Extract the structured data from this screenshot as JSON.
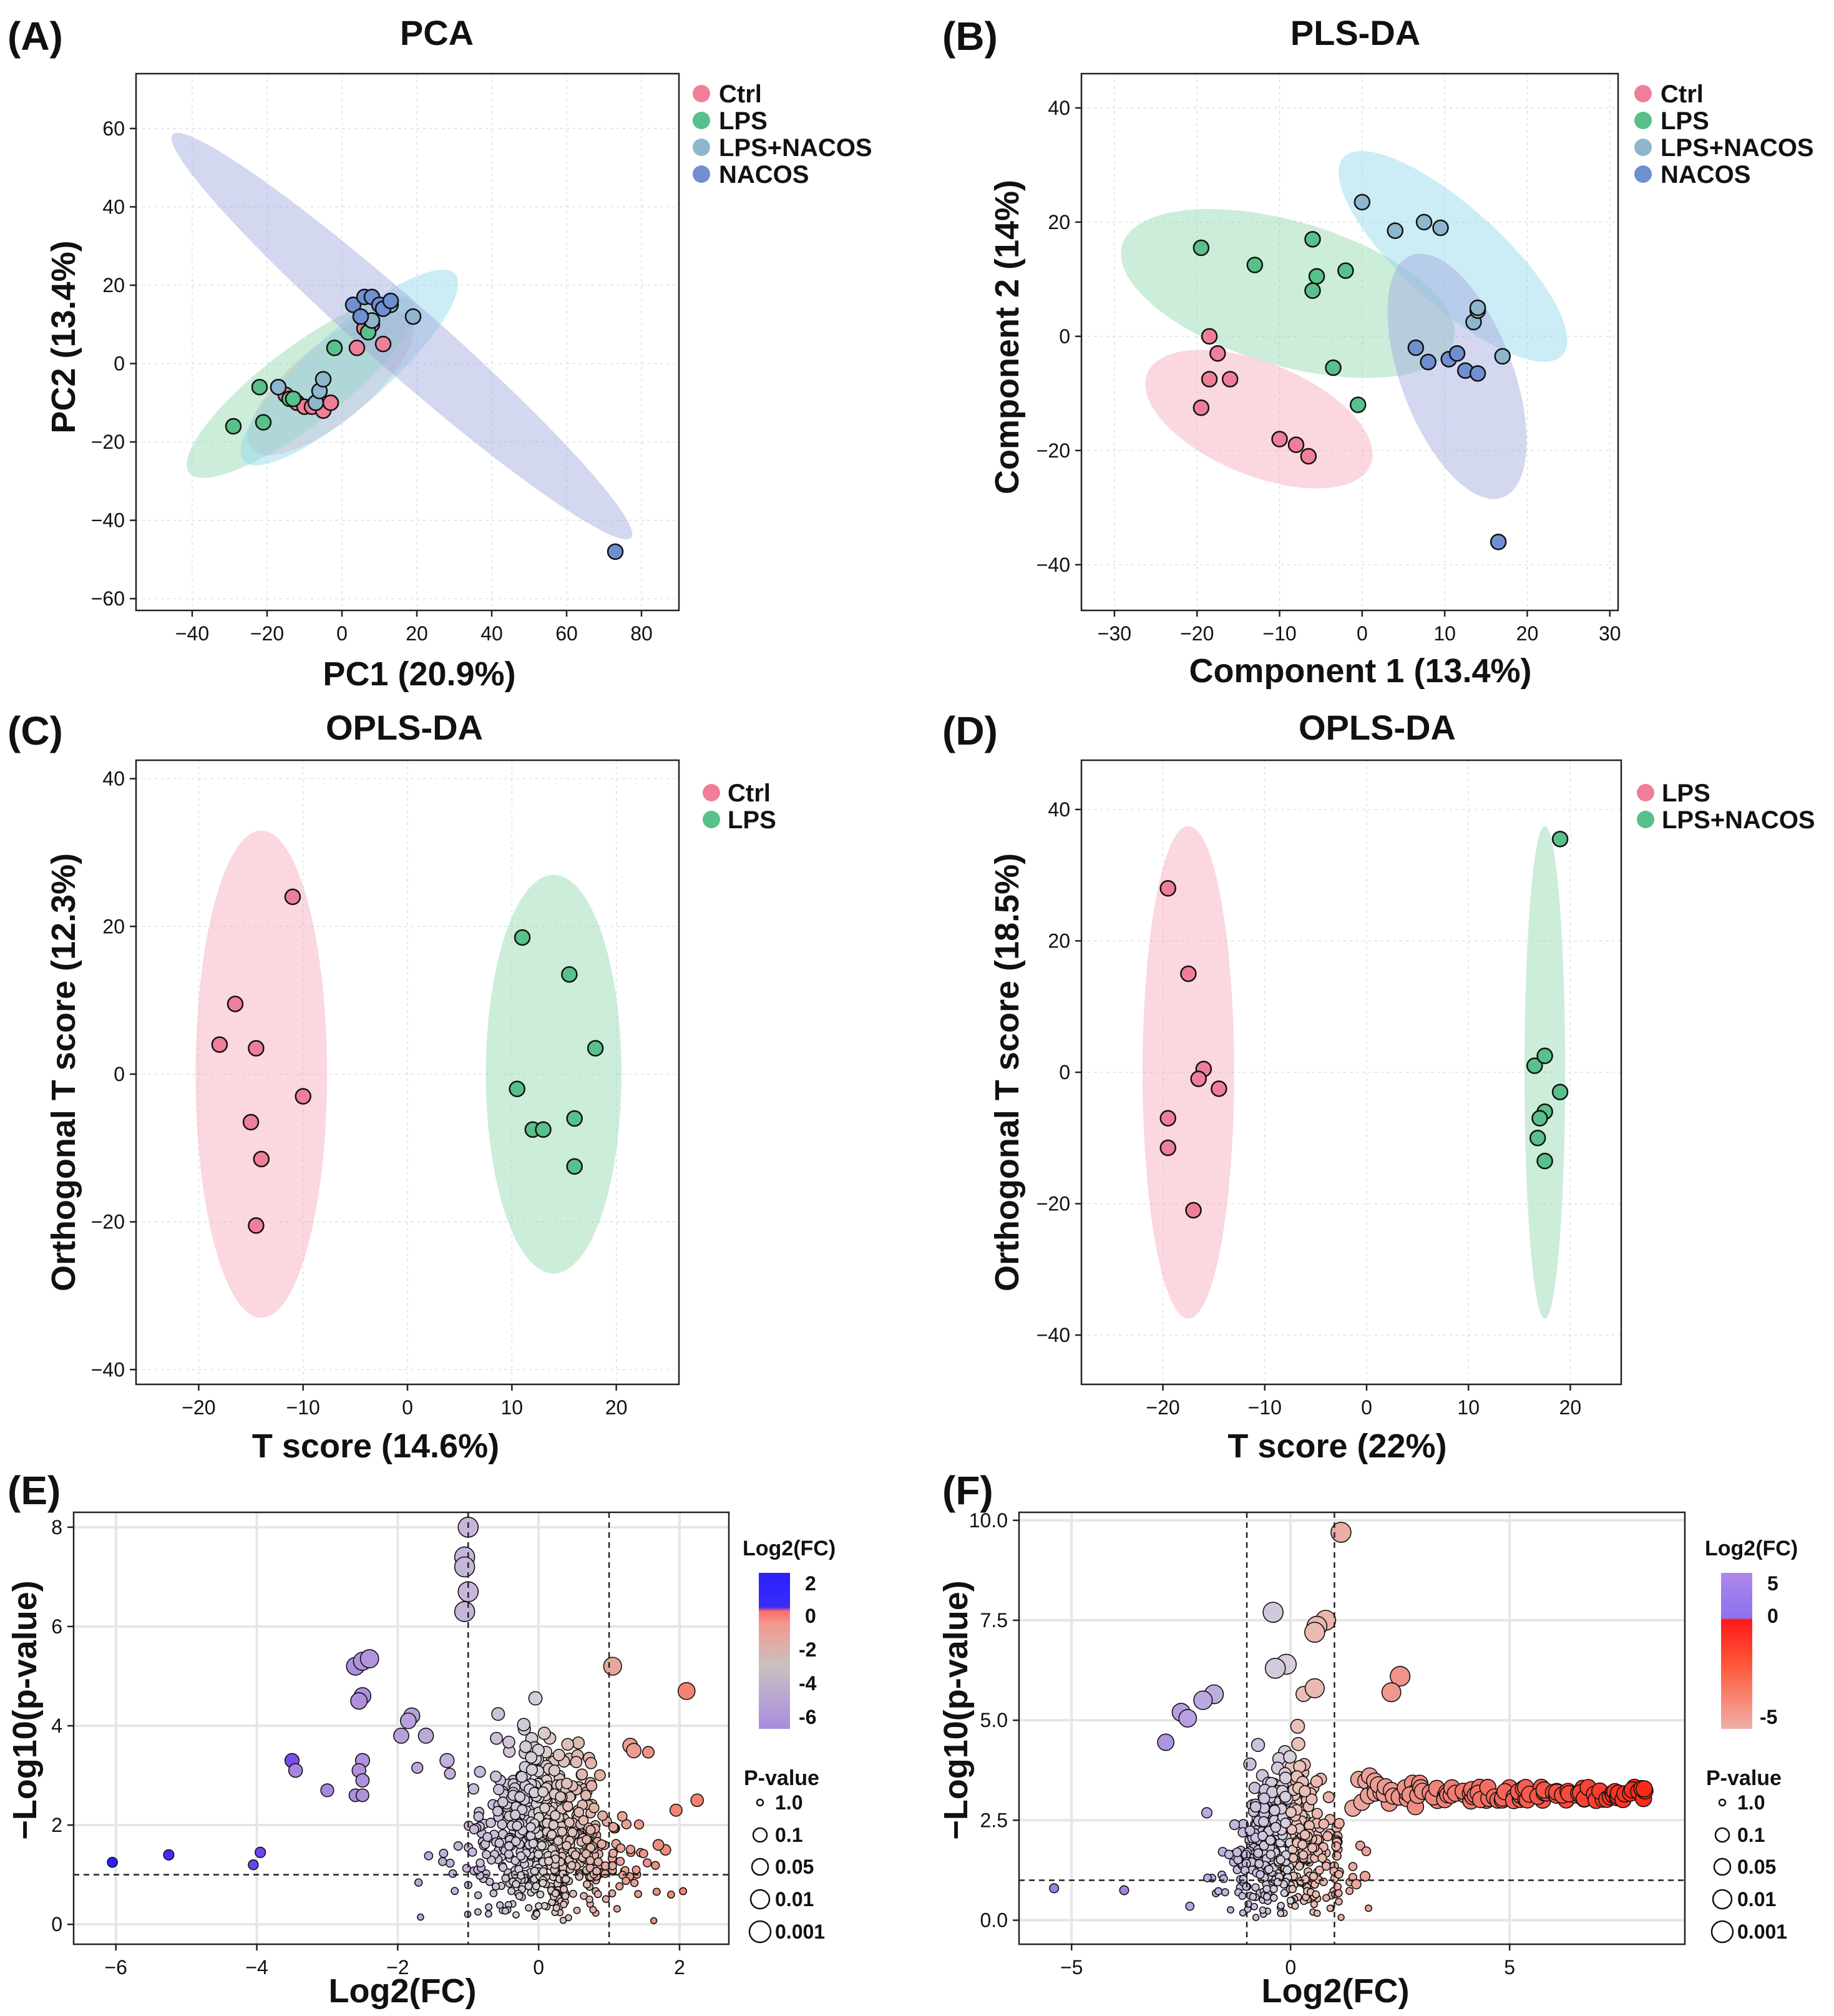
{
  "chart_data": [
    {
      "id": "A",
      "panel_label": "(A)",
      "type": "scatter",
      "title": "PCA",
      "xlabel": "PC1 (20.9%)",
      "ylabel": "PC2 (13.4%)",
      "xlim": [
        -55,
        90
      ],
      "ylim": [
        -63,
        74
      ],
      "xticks": [
        -40,
        -20,
        0,
        20,
        40,
        60,
        80
      ],
      "yticks": [
        -60,
        -40,
        -20,
        0,
        20,
        40,
        60
      ],
      "legend": [
        "Ctrl",
        "LPS",
        "LPS+NACOS",
        "NACOS"
      ],
      "ellipses": [
        {
          "group": "Ctrl",
          "cx": -3,
          "cy": -5,
          "rx": 27,
          "ry": 10,
          "angle": 38
        },
        {
          "group": "LPS",
          "cx": -11,
          "cy": -6,
          "rx": 37,
          "ry": 10,
          "angle": 36
        },
        {
          "group": "LPS+NACOS",
          "cx": 2,
          "cy": -1,
          "rx": 37,
          "ry": 10,
          "angle": 40
        },
        {
          "group": "NACOS",
          "cx": 16,
          "cy": 7,
          "rx": 80,
          "ry": 9,
          "angle": -40
        }
      ],
      "series": [
        {
          "name": "Ctrl",
          "points": [
            [
              -17,
              -6
            ],
            [
              -15,
              -8
            ],
            [
              -12,
              -10
            ],
            [
              -10,
              -11
            ],
            [
              -8,
              -11
            ],
            [
              -5,
              -12
            ],
            [
              -3,
              -10
            ],
            [
              4,
              4
            ],
            [
              6,
              9
            ],
            [
              8,
              10
            ],
            [
              11,
              5
            ]
          ]
        },
        {
          "name": "LPS",
          "points": [
            [
              -29,
              -16
            ],
            [
              -22,
              -6
            ],
            [
              -21,
              -15
            ],
            [
              -14,
              -9
            ],
            [
              -13,
              -9
            ],
            [
              -2,
              4
            ],
            [
              7,
              8
            ],
            [
              8,
              11
            ]
          ]
        },
        {
          "name": "LPS+NACOS",
          "points": [
            [
              -17,
              -6
            ],
            [
              -7,
              -10
            ],
            [
              -6,
              -7
            ],
            [
              -5,
              -4
            ],
            [
              5,
              12
            ],
            [
              8,
              11
            ],
            [
              13,
              15
            ],
            [
              19,
              12
            ]
          ]
        },
        {
          "name": "NACOS",
          "points": [
            [
              3,
              15
            ],
            [
              5,
              12
            ],
            [
              6,
              17
            ],
            [
              8,
              17
            ],
            [
              10,
              15
            ],
            [
              11,
              14
            ],
            [
              13,
              16
            ],
            [
              73,
              -48
            ]
          ]
        }
      ]
    },
    {
      "id": "B",
      "panel_label": "(B)",
      "type": "scatter",
      "title": "PLS-DA",
      "xlabel": "Component 1 (13.4%)",
      "ylabel": "Component 2 (14%)",
      "xlim": [
        -34,
        31
      ],
      "ylim": [
        -48,
        46
      ],
      "xticks": [
        -30,
        -20,
        -10,
        0,
        10,
        20,
        30
      ],
      "yticks": [
        -40,
        -20,
        0,
        20,
        40
      ],
      "legend": [
        "Ctrl",
        "LPS",
        "LPS+NACOS",
        "NACOS"
      ],
      "ellipses": [
        {
          "group": "Ctrl",
          "cx": -12.5,
          "cy": -14.5,
          "rx": 16,
          "ry": 9,
          "angle": -38
        },
        {
          "group": "LPS",
          "cx": -9,
          "cy": 7.5,
          "rx": 22,
          "ry": 12,
          "angle": -28
        },
        {
          "group": "LPS+NACOS",
          "cx": 11,
          "cy": 14,
          "rx": 22,
          "ry": 7,
          "angle": -55
        },
        {
          "group": "NACOS",
          "cx": 11.5,
          "cy": -7,
          "rx": 22,
          "ry": 7,
          "angle": -77
        }
      ],
      "series": [
        {
          "name": "Ctrl",
          "points": [
            [
              -18.5,
              0
            ],
            [
              -17.5,
              -3
            ],
            [
              -18.5,
              -7.5
            ],
            [
              -16,
              -7.5
            ],
            [
              -19.5,
              -12.5
            ],
            [
              -10,
              -18
            ],
            [
              -8,
              -19
            ],
            [
              -6.5,
              -21
            ]
          ]
        },
        {
          "name": "LPS",
          "points": [
            [
              -19.5,
              15.5
            ],
            [
              -13,
              12.5
            ],
            [
              -6,
              17
            ],
            [
              -5.5,
              10.5
            ],
            [
              -6,
              8
            ],
            [
              -2,
              11.5
            ],
            [
              -3.5,
              -5.5
            ],
            [
              -0.5,
              -12
            ]
          ]
        },
        {
          "name": "LPS+NACOS",
          "points": [
            [
              0,
              23.5
            ],
            [
              4,
              18.5
            ],
            [
              7.5,
              20
            ],
            [
              9.5,
              19
            ],
            [
              13.5,
              2.5
            ],
            [
              14,
              4.5
            ],
            [
              14,
              5
            ],
            [
              17,
              -3.5
            ]
          ]
        },
        {
          "name": "NACOS",
          "points": [
            [
              6.5,
              -2
            ],
            [
              8,
              -4.5
            ],
            [
              10.5,
              -4
            ],
            [
              11.5,
              -3
            ],
            [
              12.5,
              -6
            ],
            [
              14,
              -6.5
            ],
            [
              16.5,
              -36
            ]
          ]
        }
      ]
    },
    {
      "id": "C",
      "panel_label": "(C)",
      "type": "scatter",
      "title": "OPLS-DA",
      "xlabel": "T score (14.6%)",
      "ylabel": "Orthogonal T score  (12.3%)",
      "xlim": [
        -26,
        26
      ],
      "ylim": [
        -42,
        42.5
      ],
      "xticks": [
        -20,
        -10,
        0,
        10,
        20
      ],
      "yticks": [
        -40,
        -20,
        0,
        20,
        40
      ],
      "legend": [
        "Ctrl",
        "LPS"
      ],
      "ellipses": [
        {
          "group": "Ctrl",
          "cx": -14,
          "cy": 0,
          "rx": 6.3,
          "ry": 33,
          "angle": 0
        },
        {
          "group": "LPS",
          "cx": 14,
          "cy": 0,
          "rx": 6.5,
          "ry": 27,
          "angle": 0
        }
      ],
      "series": [
        {
          "name": "Ctrl",
          "points": [
            [
              -11,
              24
            ],
            [
              -16.5,
              9.5
            ],
            [
              -18,
              4
            ],
            [
              -14.5,
              3.5
            ],
            [
              -10,
              -3
            ],
            [
              -15,
              -6.5
            ],
            [
              -14,
              -11.5
            ],
            [
              -14.5,
              -20.5
            ]
          ]
        },
        {
          "name": "LPS",
          "points": [
            [
              11,
              18.5
            ],
            [
              15.5,
              13.5
            ],
            [
              18,
              3.5
            ],
            [
              10.5,
              -2
            ],
            [
              12,
              -7.5
            ],
            [
              13,
              -7.5
            ],
            [
              16,
              -6
            ],
            [
              16,
              -12.5
            ]
          ]
        }
      ]
    },
    {
      "id": "D",
      "panel_label": "(D)",
      "type": "scatter",
      "title": "OPLS-DA",
      "xlabel": "T score (22%)",
      "ylabel": "Orthogonal T score  (18.5%)",
      "xlim": [
        -28,
        25
      ],
      "ylim": [
        -47.5,
        47.5
      ],
      "xticks": [
        -20,
        -10,
        0,
        10,
        20
      ],
      "yticks": [
        -40,
        -20,
        0,
        20,
        40
      ],
      "legend": [
        "LPS",
        "LPS+NACOS"
      ],
      "ellipses": [
        {
          "group": "LPS",
          "cx": -17.5,
          "cy": 0,
          "rx": 4.5,
          "ry": 37.5,
          "angle": 0
        },
        {
          "group": "LPS+NACOS",
          "cx": 17.5,
          "cy": 0,
          "rx": 2,
          "ry": 37.5,
          "angle": 0
        }
      ],
      "series": [
        {
          "name": "LPS",
          "points": [
            [
              -19.5,
              28
            ],
            [
              -17.5,
              15
            ],
            [
              -16,
              0.5
            ],
            [
              -16.5,
              -1
            ],
            [
              -14.5,
              -2.5
            ],
            [
              -19.5,
              -7
            ],
            [
              -19.5,
              -11.5
            ],
            [
              -17,
              -21
            ]
          ]
        },
        {
          "name": "LPS+NACOS",
          "points": [
            [
              19,
              35.5
            ],
            [
              16.5,
              1
            ],
            [
              17.5,
              2.5
            ],
            [
              17.5,
              -6
            ],
            [
              19,
              -3
            ],
            [
              17,
              -7
            ],
            [
              16.8,
              -10
            ],
            [
              17.5,
              -13.5
            ]
          ]
        }
      ]
    },
    {
      "id": "E",
      "panel_label": "(E)",
      "type": "scatter",
      "subtype": "volcano",
      "xlabel": "Log2(FC)",
      "ylabel": "−Log10(p-value)",
      "xlim": [
        -6.6,
        2.7
      ],
      "ylim": [
        -0.4,
        8.3
      ],
      "xticks": [
        -6,
        -4,
        -2,
        0,
        2
      ],
      "yticks": [
        0,
        2,
        4,
        6,
        8
      ],
      "thresholds": {
        "x": [
          -1,
          1
        ],
        "y": 1.0
      },
      "colorbar": {
        "title": "Log2(FC)",
        "ticks": [
          2,
          0,
          -2,
          -4,
          -6
        ]
      },
      "size_legend": {
        "title": "P-value",
        "labels": [
          "1.0",
          "0.1",
          "0.05",
          "0.01",
          "0.001"
        ]
      },
      "highlight_points": [
        [
          -1,
          8
        ],
        [
          -1.05,
          7.4
        ],
        [
          -1.05,
          7.2
        ],
        [
          -1,
          6.7
        ],
        [
          -1.05,
          6.3
        ],
        [
          -2.6,
          5.2
        ],
        [
          -2.5,
          5.3
        ],
        [
          -2.4,
          5.35
        ],
        [
          -2.5,
          4.6
        ],
        [
          -2.55,
          4.5
        ],
        [
          -1.8,
          4.2
        ],
        [
          -1.85,
          4.1
        ],
        [
          -1.95,
          3.8
        ],
        [
          -1.6,
          3.8
        ],
        [
          -1.3,
          3.3
        ],
        [
          -3.5,
          3.3
        ],
        [
          -3.45,
          3.1
        ],
        [
          -2.5,
          3.3
        ],
        [
          -2.55,
          3.1
        ],
        [
          -2.5,
          2.9
        ],
        [
          -2.6,
          2.6
        ],
        [
          -2.5,
          2.6
        ],
        [
          -3.0,
          2.7
        ],
        [
          -6.05,
          1.25
        ],
        [
          -5.25,
          1.4
        ],
        [
          -4.05,
          1.2
        ],
        [
          -3.95,
          1.45
        ],
        [
          1.05,
          5.2
        ],
        [
          2.1,
          4.7
        ],
        [
          1.3,
          3.6
        ],
        [
          1.35,
          3.5
        ],
        [
          2.25,
          2.5
        ],
        [
          1.95,
          2.3
        ],
        [
          1.8,
          1.5
        ],
        [
          1.7,
          1.6
        ]
      ],
      "cloud": {
        "count": 650,
        "x_mean": 0.1,
        "x_sd": 0.55,
        "y_max": 4.1
      }
    },
    {
      "id": "F",
      "panel_label": "(F)",
      "type": "scatter",
      "subtype": "volcano",
      "xlabel": "Log2(FC)",
      "ylabel": "−Log10(p-value)",
      "xlim": [
        -6.2,
        9.0
      ],
      "ylim": [
        -0.6,
        10.2
      ],
      "xticks": [
        -5,
        0,
        5
      ],
      "yticks": [
        0,
        2.5,
        5,
        7.5,
        10
      ],
      "tick_labels_y": [
        "0.0",
        "2.5",
        "5.0",
        "7.5",
        "10.0"
      ],
      "thresholds": {
        "x": [
          -1,
          1
        ],
        "y": 1.0
      },
      "colorbar": {
        "title": "Log2(FC)",
        "ticks": [
          5,
          0,
          -5
        ]
      },
      "size_legend": {
        "title": "P-value",
        "labels": [
          "1.0",
          "0.1",
          "0.05",
          "0.01",
          "0.001"
        ]
      },
      "highlight_points": [
        [
          1.15,
          9.7
        ],
        [
          -0.4,
          7.7
        ],
        [
          0.8,
          7.5
        ],
        [
          0.6,
          7.35
        ],
        [
          0.55,
          7.2
        ],
        [
          2.5,
          6.1
        ],
        [
          2.3,
          5.7
        ],
        [
          -0.1,
          6.4
        ],
        [
          -0.35,
          6.3
        ],
        [
          0.55,
          5.8
        ],
        [
          -1.75,
          5.65
        ],
        [
          -2.0,
          5.5
        ],
        [
          -2.5,
          5.2
        ],
        [
          -2.35,
          5.05
        ],
        [
          -2.85,
          4.45
        ],
        [
          -5.4,
          0.8
        ],
        [
          -3.8,
          0.75
        ],
        [
          -2.3,
          0.35
        ],
        [
          1.5,
          0.9
        ],
        [
          1.7,
          1.1
        ]
      ],
      "plateau": {
        "x_start": 1.5,
        "x_end": 8.2,
        "y": 3.15,
        "count": 120
      },
      "cloud": {
        "count": 520,
        "x_mean": -0.15,
        "x_sd": 0.55,
        "y_max": 5.0
      }
    }
  ]
}
